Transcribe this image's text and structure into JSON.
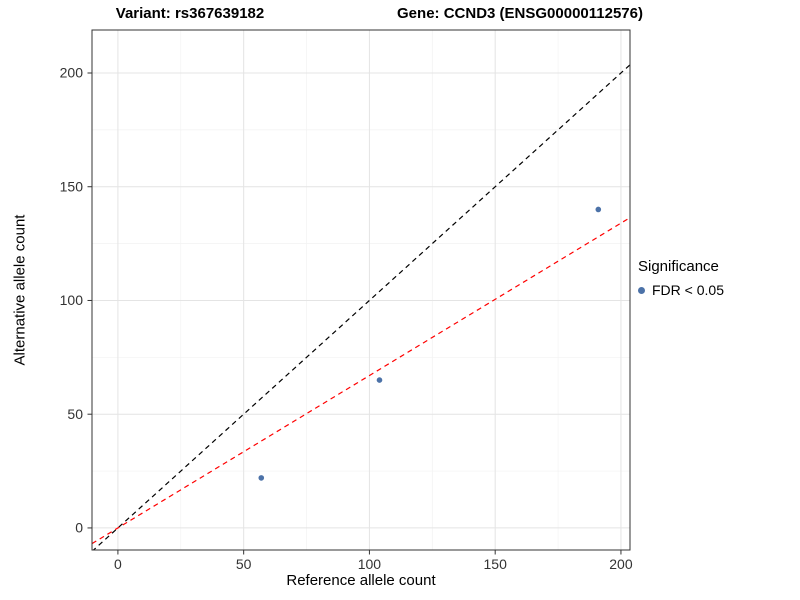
{
  "titles": {
    "left": "Variant: rs367639182",
    "right": "Gene: CCND3 (ENSG00000112576)"
  },
  "legend": {
    "title": "Significance",
    "items": [
      {
        "label": "FDR < 0.05",
        "color": "#4c72a8",
        "marker": "circle"
      }
    ]
  },
  "chart_data": {
    "type": "scatter",
    "title": "Variant: rs367639182 / Gene: CCND3 (ENSG00000112576)",
    "xlabel": "Reference allele count",
    "ylabel": "Alternative allele count",
    "xlim": [
      -10.3,
      203.6
    ],
    "ylim": [
      -9.7,
      218.9
    ],
    "xticks": [
      0,
      50,
      100,
      150,
      200
    ],
    "yticks": [
      0,
      50,
      100,
      150,
      200
    ],
    "x_minor": [
      25,
      75,
      125,
      175
    ],
    "y_minor": [
      25,
      75,
      125,
      175
    ],
    "grid": true,
    "legend_position": "right",
    "point_color": "#4c72a8",
    "point_radius": 2.8,
    "points": [
      {
        "x": 57,
        "y": 22,
        "significance": "FDR < 0.05"
      },
      {
        "x": 104,
        "y": 65,
        "significance": "FDR < 0.05"
      },
      {
        "x": 191,
        "y": 140,
        "significance": "FDR < 0.05"
      }
    ],
    "lines": [
      {
        "name": "identity-line",
        "slope": 1,
        "intercept": 0,
        "color": "#000000",
        "dash": "5 4"
      },
      {
        "name": "fit-line",
        "slope": 0.67,
        "intercept": 0,
        "color": "#ff0000",
        "dash": "5 4"
      }
    ],
    "colors": {
      "background": "#ffffff",
      "grid_major": "#e4e4e4",
      "grid_minor": "#f2f2f2",
      "panel_border": "#333333",
      "tick_mark": "#333333",
      "tick_text": "#333333"
    }
  }
}
